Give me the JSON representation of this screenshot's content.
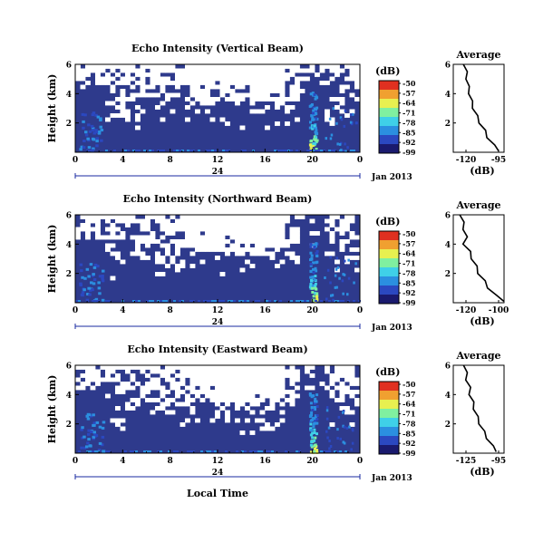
{
  "chart_data": {
    "type": "heatmap",
    "panels": [
      {
        "title": "Echo Intensity (Vertical Beam)",
        "ylabel": "Height (km)",
        "yticks": [
          "6",
          "4",
          "2"
        ],
        "xticks": [
          "0",
          "4",
          "8",
          "12",
          "16",
          "20",
          "0"
        ],
        "date_tick": "24",
        "date_label": "Jan 2013",
        "colorbar_label": "(dB)",
        "colorbar_ticks": [
          "-50",
          "-57",
          "-64",
          "-71",
          "-78",
          "-85",
          "-92",
          "-99"
        ],
        "avg_title": "Average",
        "avg_xlabel": "(dB)",
        "avg_xticks": [
          "-120",
          "-95"
        ],
        "avg_yticks": [
          "6",
          "4",
          "2"
        ],
        "avg_profile": {
          "height_km": [
            6.0,
            5.5,
            5.0,
            4.5,
            4.0,
            3.5,
            3.0,
            2.5,
            2.0,
            1.5,
            1.0,
            0.5,
            0.1
          ],
          "db": [
            -121,
            -120,
            -119,
            -118.5,
            -117,
            -116,
            -114,
            -112,
            -109,
            -106,
            -103,
            -99,
            -94
          ]
        }
      },
      {
        "title": "Echo Intensity (Northward Beam)",
        "ylabel": "Height (km)",
        "yticks": [
          "6",
          "4",
          "2"
        ],
        "xticks": [
          "0",
          "4",
          "8",
          "12",
          "16",
          "20",
          "0"
        ],
        "date_tick": "24",
        "date_label": "Jan 2013",
        "colorbar_label": "(dB)",
        "colorbar_ticks": [
          "-50",
          "-57",
          "-64",
          "-71",
          "-78",
          "-85",
          "-92",
          "-99"
        ],
        "avg_title": "Average",
        "avg_xlabel": "(dB)",
        "avg_xticks": [
          "-120",
          "-100"
        ],
        "avg_yticks": [
          "6",
          "4",
          "2"
        ],
        "avg_profile": {
          "height_km": [
            6.0,
            5.5,
            5.0,
            4.5,
            4.0,
            3.5,
            3.0,
            2.5,
            2.0,
            1.5,
            1.0,
            0.5,
            0.1
          ],
          "db": [
            -123,
            -122,
            -121,
            -120,
            -121,
            -118,
            -116,
            -114,
            -112,
            -109,
            -106,
            -102,
            -96
          ]
        }
      },
      {
        "title": "Echo Intensity (Eastward Beam)",
        "ylabel": "Height (km)",
        "yticks": [
          "6",
          "4",
          "2"
        ],
        "xticks": [
          "0",
          "4",
          "8",
          "12",
          "16",
          "20",
          "0"
        ],
        "date_tick": "24",
        "date_label": "Jan 2013",
        "colorbar_label": "(dB)",
        "colorbar_ticks": [
          "-50",
          "-57",
          "-64",
          "-71",
          "-78",
          "-85",
          "-92",
          "-99"
        ],
        "avg_title": "Average",
        "avg_xlabel": "(dB)",
        "avg_xticks": [
          "-125",
          "-95"
        ],
        "avg_yticks": [
          "6",
          "4",
          "2"
        ],
        "avg_profile": {
          "height_km": [
            6.0,
            5.5,
            5.0,
            4.5,
            4.0,
            3.5,
            3.0,
            2.5,
            2.0,
            1.5,
            1.0,
            0.5,
            0.1
          ],
          "db": [
            -126,
            -125,
            -124,
            -122,
            -121,
            -119,
            -117,
            -115,
            -112,
            -109,
            -105,
            -101,
            -96
          ]
        }
      }
    ],
    "xlabel": "Local Time",
    "background_color": "#2e3a8c",
    "no_data_color": "#ffffff",
    "colormap": [
      "#1a1a6e",
      "#2b48c0",
      "#2b8fe0",
      "#3fd0e8",
      "#80f0a0",
      "#e8f050",
      "#f0a030",
      "#e03020"
    ]
  }
}
